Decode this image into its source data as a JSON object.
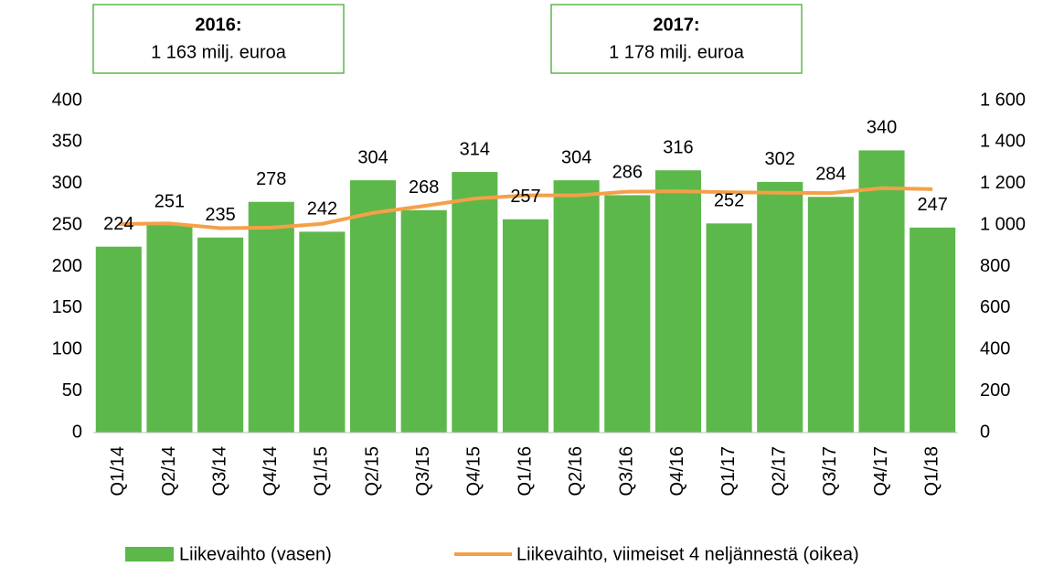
{
  "chart_data": {
    "type": "bar",
    "annotations": [
      {
        "title": "2016:",
        "text": "1 163 milj. euroa"
      },
      {
        "title": "2017:",
        "text": "1 178 milj. euroa"
      }
    ],
    "categories": [
      "Q1/14",
      "Q2/14",
      "Q3/14",
      "Q4/14",
      "Q1/15",
      "Q2/15",
      "Q3/15",
      "Q4/15",
      "Q1/16",
      "Q2/16",
      "Q3/16",
      "Q4/16",
      "Q1/17",
      "Q2/17",
      "Q3/17",
      "Q4/17",
      "Q1/18"
    ],
    "series": [
      {
        "name": "Liikevaihto (vasen)",
        "type": "bar",
        "color": "#5cb84a",
        "values": [
          224,
          251,
          235,
          278,
          242,
          304,
          268,
          314,
          257,
          304,
          286,
          316,
          252,
          302,
          284,
          340,
          247
        ]
      },
      {
        "name": "Liikevaihto, viimeiset 4 neljännestä (oikea)",
        "type": "line",
        "axis": "y2",
        "color": "#f5a048",
        "values": [
          1005,
          1008,
          985,
          988,
          1006,
          1059,
          1092,
          1128,
          1143,
          1143,
          1161,
          1163,
          1158,
          1156,
          1154,
          1178,
          1173
        ]
      }
    ],
    "ylim": [
      0,
      400
    ],
    "yticks": [
      0,
      50,
      100,
      150,
      200,
      250,
      300,
      350,
      400
    ],
    "y2lim": [
      0,
      1600
    ],
    "y2ticks": [
      0,
      200,
      400,
      600,
      800,
      {
        "value": 1000,
        "label": "1 000"
      },
      {
        "value": 1200,
        "label": "1 200"
      },
      {
        "value": 1400,
        "label": "1 400"
      },
      {
        "value": 1600,
        "label": "1 600"
      }
    ],
    "legend": "bottom"
  }
}
